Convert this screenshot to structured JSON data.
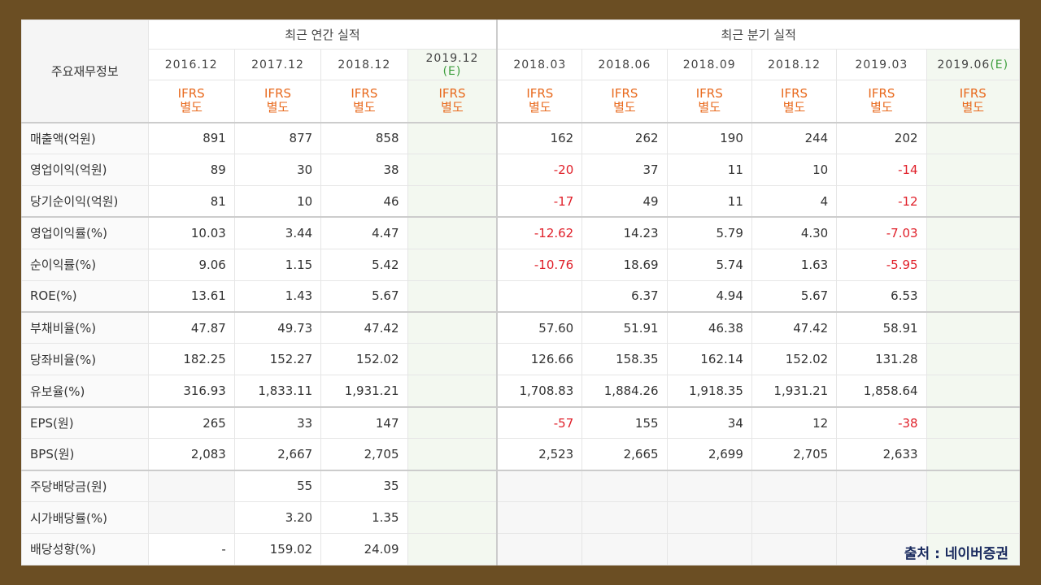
{
  "table": {
    "corner_label": "주요재무정보",
    "annual_group": "최근 연간 실적",
    "quarter_group": "최근 분기 실적",
    "annual_dates": [
      "2016.12",
      "2017.12",
      "2018.12",
      "2019.12"
    ],
    "annual_est_suffix": "(E)",
    "quarter_dates": [
      "2018.03",
      "2018.06",
      "2018.09",
      "2018.12",
      "2019.03",
      "2019.06"
    ],
    "quarter_est_suffix": "(E)",
    "ifrs_line1": "IFRS",
    "ifrs_line2": "별도",
    "rows": [
      {
        "label": "매출액(억원)",
        "annual": [
          "891",
          "877",
          "858",
          ""
        ],
        "quarter": [
          "162",
          "262",
          "190",
          "244",
          "202",
          ""
        ]
      },
      {
        "label": "영업이익(억원)",
        "annual": [
          "89",
          "30",
          "38",
          ""
        ],
        "quarter": [
          "-20",
          "37",
          "11",
          "10",
          "-14",
          ""
        ]
      },
      {
        "label": "당기순이익(억원)",
        "annual": [
          "81",
          "10",
          "46",
          ""
        ],
        "quarter": [
          "-17",
          "49",
          "11",
          "4",
          "-12",
          ""
        ]
      },
      {
        "label": "영업이익률(%)",
        "annual": [
          "10.03",
          "3.44",
          "4.47",
          ""
        ],
        "quarter": [
          "-12.62",
          "14.23",
          "5.79",
          "4.30",
          "-7.03",
          ""
        ]
      },
      {
        "label": "순이익률(%)",
        "annual": [
          "9.06",
          "1.15",
          "5.42",
          ""
        ],
        "quarter": [
          "-10.76",
          "18.69",
          "5.74",
          "1.63",
          "-5.95",
          ""
        ]
      },
      {
        "label": "ROE(%)",
        "annual": [
          "13.61",
          "1.43",
          "5.67",
          ""
        ],
        "quarter": [
          "",
          "6.37",
          "4.94",
          "5.67",
          "6.53",
          ""
        ]
      },
      {
        "label": "부채비율(%)",
        "annual": [
          "47.87",
          "49.73",
          "47.42",
          ""
        ],
        "quarter": [
          "57.60",
          "51.91",
          "46.38",
          "47.42",
          "58.91",
          ""
        ]
      },
      {
        "label": "당좌비율(%)",
        "annual": [
          "182.25",
          "152.27",
          "152.02",
          ""
        ],
        "quarter": [
          "126.66",
          "158.35",
          "162.14",
          "152.02",
          "131.28",
          ""
        ]
      },
      {
        "label": "유보율(%)",
        "annual": [
          "316.93",
          "1,833.11",
          "1,931.21",
          ""
        ],
        "quarter": [
          "1,708.83",
          "1,884.26",
          "1,918.35",
          "1,931.21",
          "1,858.64",
          ""
        ]
      },
      {
        "label": "EPS(원)",
        "annual": [
          "265",
          "33",
          "147",
          ""
        ],
        "quarter": [
          "-57",
          "155",
          "34",
          "12",
          "-38",
          ""
        ]
      },
      {
        "label": "BPS(원)",
        "annual": [
          "2,083",
          "2,667",
          "2,705",
          ""
        ],
        "quarter": [
          "2,523",
          "2,665",
          "2,699",
          "2,705",
          "2,633",
          ""
        ]
      },
      {
        "label": "주당배당금(원)",
        "annual": [
          "",
          "55",
          "35",
          ""
        ],
        "quarter": [
          "",
          "",
          "",
          "",
          "",
          ""
        ]
      },
      {
        "label": "시가배당률(%)",
        "annual": [
          "",
          "3.20",
          "1.35",
          ""
        ],
        "quarter": [
          "",
          "",
          "",
          "",
          "",
          ""
        ]
      },
      {
        "label": "배당성향(%)",
        "annual": [
          "-",
          "159.02",
          "24.09",
          ""
        ],
        "quarter": [
          "",
          "",
          "",
          "",
          "",
          ""
        ]
      }
    ]
  },
  "source_text": "출처 : 네이버증권",
  "colors": {
    "frame": "#6b4e23",
    "ifrs": "#e86a1e",
    "negative": "#e0202a",
    "estimate_bg": "#f3f8f0",
    "estimate_e": "#3c9d3c",
    "source": "#1a2b5f"
  }
}
